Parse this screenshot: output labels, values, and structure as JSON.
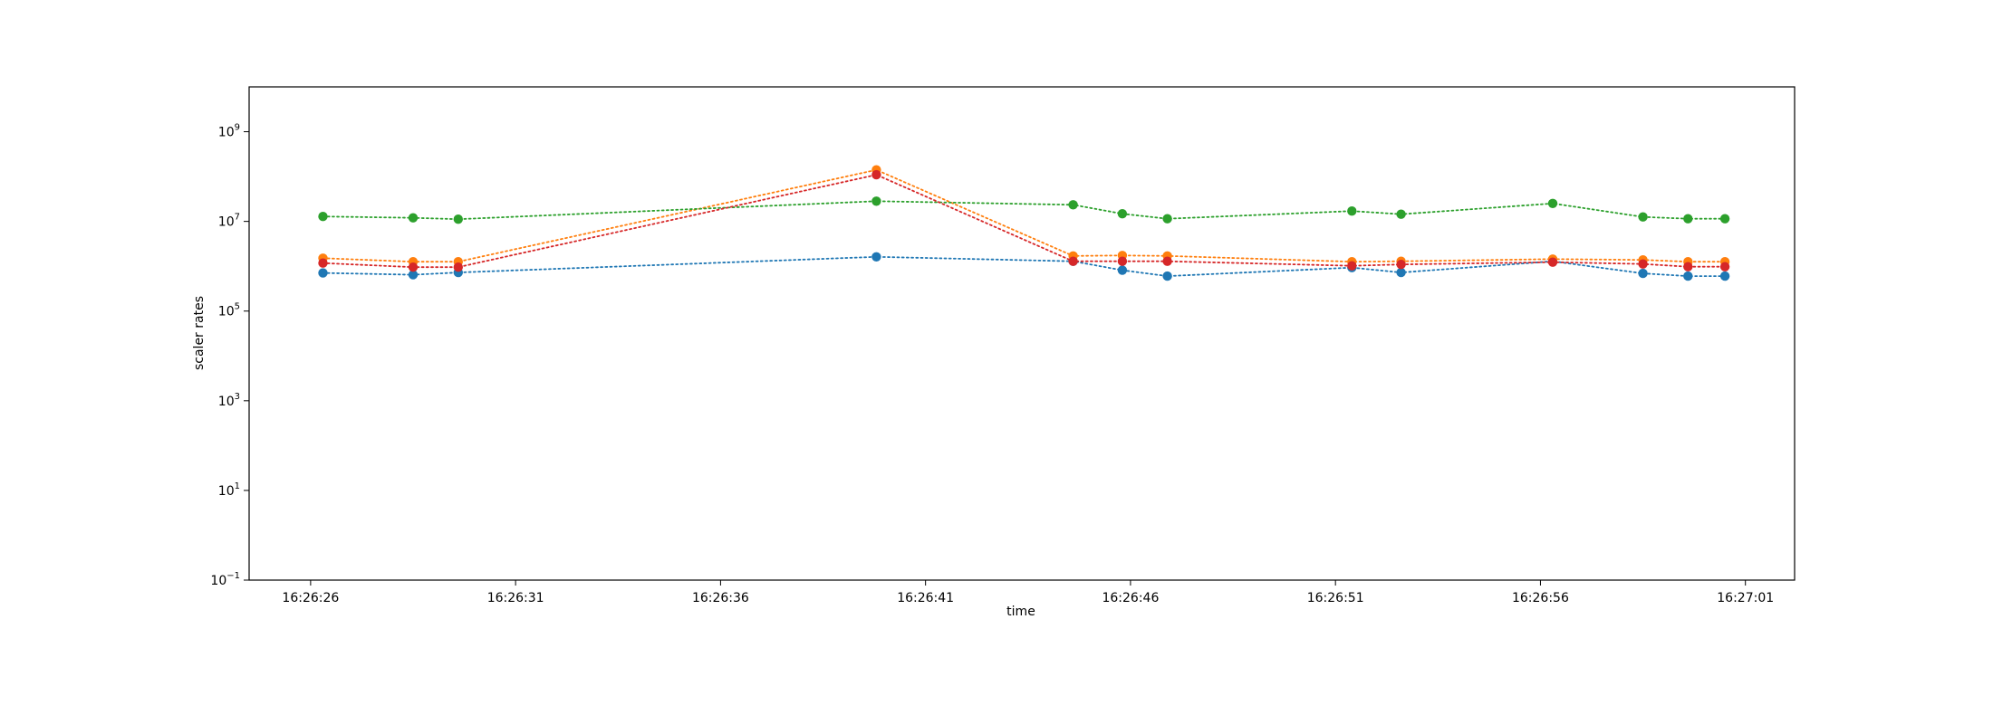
{
  "chart_data": {
    "type": "line",
    "title": "",
    "xlabel": "time",
    "ylabel": "scaler rates",
    "yscale": "log",
    "ylim_exponents": [
      -1,
      10
    ],
    "y_ticks": [
      {
        "base": "10",
        "exp": "−1"
      },
      {
        "base": "10",
        "exp": "1"
      },
      {
        "base": "10",
        "exp": "3"
      },
      {
        "base": "10",
        "exp": "5"
      },
      {
        "base": "10",
        "exp": "7"
      },
      {
        "base": "10",
        "exp": "9"
      }
    ],
    "y_tick_exponents": [
      -1,
      1,
      3,
      5,
      7,
      9
    ],
    "x_range_seconds": [
      -1.5,
      36.2
    ],
    "x_ticks": [
      "16:26:26",
      "16:26:31",
      "16:26:36",
      "16:26:41",
      "16:26:46",
      "16:26:51",
      "16:26:56",
      "16:27:01"
    ],
    "x_tick_seconds": [
      0,
      5,
      10,
      15,
      20,
      25,
      30,
      35
    ],
    "x_seconds": [
      0.3,
      2.5,
      3.6,
      13.8,
      18.6,
      19.8,
      20.9,
      25.4,
      26.6,
      30.3,
      32.5,
      33.6,
      34.5
    ],
    "series": [
      {
        "name": "series-blue",
        "color": "#1f77b4",
        "log10_values": [
          5.85,
          5.81,
          5.86,
          6.21,
          6.11,
          5.91,
          5.78,
          5.97,
          5.86,
          6.11,
          5.84,
          5.78,
          5.78
        ]
      },
      {
        "name": "series-orange",
        "color": "#ff7f0e",
        "log10_values": [
          6.18,
          6.1,
          6.1,
          8.15,
          6.23,
          6.24,
          6.23,
          6.1,
          6.11,
          6.16,
          6.14,
          6.1,
          6.1
        ]
      },
      {
        "name": "series-green",
        "color": "#2ca02c",
        "log10_values": [
          7.11,
          7.08,
          7.05,
          7.45,
          7.37,
          7.17,
          7.06,
          7.23,
          7.16,
          7.4,
          7.1,
          7.06,
          7.06
        ]
      },
      {
        "name": "series-red",
        "color": "#d62728",
        "log10_values": [
          6.07,
          5.98,
          5.98,
          8.04,
          6.11,
          6.11,
          6.11,
          6.01,
          6.04,
          6.09,
          6.05,
          5.99,
          5.99
        ]
      }
    ]
  }
}
